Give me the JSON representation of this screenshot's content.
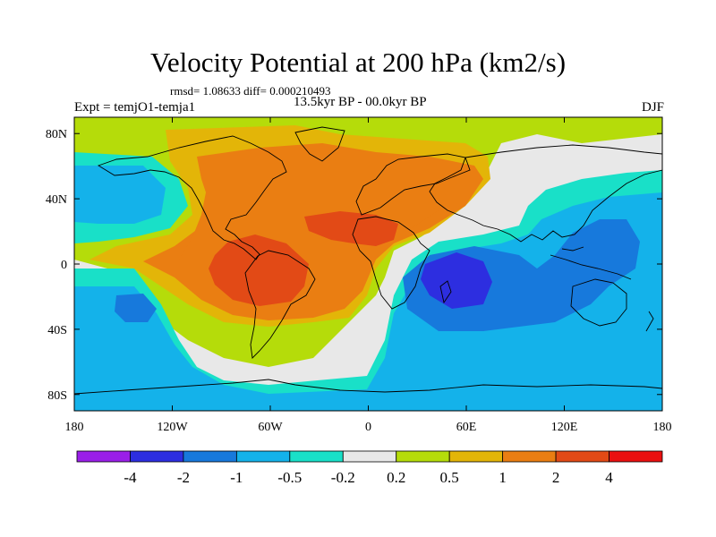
{
  "title": "Velocity Potential at 200 hPa (km2/s)",
  "stats_text": "rmsd= 1.08633 diff= 0.000210493",
  "left_label": "Expt = temjO1-temja1",
  "center_label": "13.5kyr BP - 00.0kyr BP",
  "right_label": "DJF",
  "map": {
    "projection": "cylindrical equidistant",
    "lon_range": [
      -180,
      180
    ],
    "lat_range": [
      -90,
      90
    ],
    "lat_ticks": [
      {
        "value": 80,
        "label": "80N"
      },
      {
        "value": 40,
        "label": "40N"
      },
      {
        "value": 0,
        "label": "0"
      },
      {
        "value": -40,
        "label": "40S"
      },
      {
        "value": -80,
        "label": "80S"
      }
    ],
    "lon_ticks": [
      {
        "value": -180,
        "label": "180"
      },
      {
        "value": -120,
        "label": "120W"
      },
      {
        "value": -60,
        "label": "60W"
      },
      {
        "value": 0,
        "label": "0"
      },
      {
        "value": 60,
        "label": "60E"
      },
      {
        "value": 120,
        "label": "120E"
      },
      {
        "value": 180,
        "label": "180"
      }
    ]
  },
  "colorbar": {
    "colors": [
      "#9a1fe8",
      "#2d2ee0",
      "#1779dc",
      "#14b2ea",
      "#19e0c8",
      "#e8e8e8",
      "#b5dc0a",
      "#e3b508",
      "#ea7e12",
      "#e24a16",
      "#ea1010"
    ],
    "labels": [
      "-4",
      "-2",
      "-1",
      "-0.5",
      "-0.2",
      "0.2",
      "0.5",
      "1",
      "2",
      "4"
    ]
  },
  "contour_fill": [
    {
      "level": "0.2 to 0.5",
      "color": "#b5dc0a"
    },
    {
      "level": "0.5 to 1",
      "color": "#e3b508"
    },
    {
      "level": "1 to 2",
      "color": "#ea7e12"
    },
    {
      "level": "2 to 4",
      "color": "#e24a16"
    },
    {
      "level": "-0.2 to 0.2",
      "color": "#e8e8e8"
    },
    {
      "level": "-0.5 to -0.2",
      "color": "#19e0c8"
    },
    {
      "level": "-1 to -0.5",
      "color": "#14b2ea"
    },
    {
      "level": "-2 to -1",
      "color": "#1779dc"
    },
    {
      "level": "-4 to -2",
      "color": "#2d2ee0"
    }
  ]
}
